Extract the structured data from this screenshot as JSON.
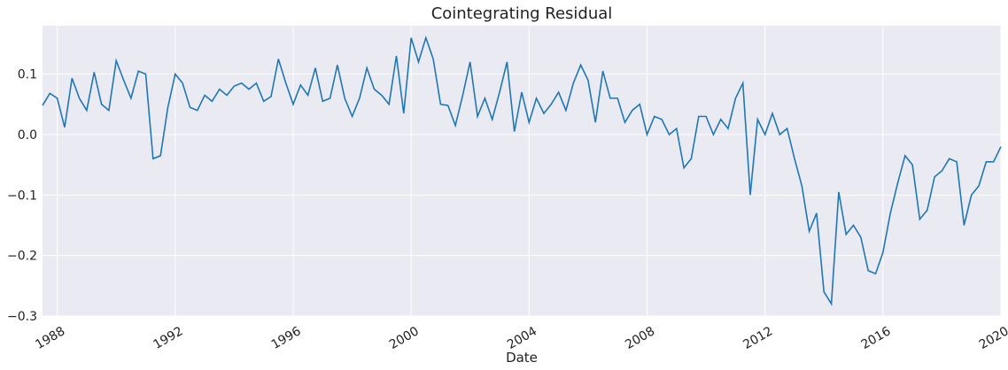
{
  "chart_data": {
    "type": "line",
    "title": "Cointegrating Residual",
    "xlabel": "Date",
    "ylabel": "",
    "xlim": [
      "1987-07",
      "2020-01"
    ],
    "ylim": [
      -0.3,
      0.18
    ],
    "grid": true,
    "y_ticks": [
      -0.3,
      -0.2,
      -0.1,
      0.0,
      0.1
    ],
    "y_tick_labels": [
      "−0.3",
      "−0.2",
      "−0.1",
      "0.0",
      "0.1"
    ],
    "x_ticks": [
      "1988",
      "1992",
      "1996",
      "2000",
      "2004",
      "2008",
      "2012",
      "2016",
      "2020"
    ],
    "colors": {
      "line": "#1f77b4",
      "background": "#eaeaf2",
      "grid": "#ffffff"
    },
    "series": [
      {
        "x": [
          "1987-07",
          "1987-10",
          "1988-01",
          "1988-04",
          "1988-07",
          "1988-10",
          "1989-01",
          "1989-04",
          "1989-07",
          "1989-10",
          "1990-01",
          "1990-04",
          "1990-07",
          "1990-10",
          "1991-01",
          "1991-04",
          "1991-07",
          "1991-10",
          "1992-01",
          "1992-04",
          "1992-07",
          "1992-10",
          "1993-01",
          "1993-04",
          "1993-07",
          "1993-10",
          "1994-01",
          "1994-04",
          "1994-07",
          "1994-10",
          "1995-01",
          "1995-04",
          "1995-07",
          "1995-10",
          "1996-01",
          "1996-04",
          "1996-07",
          "1996-10",
          "1997-01",
          "1997-04",
          "1997-07",
          "1997-10",
          "1998-01",
          "1998-04",
          "1998-07",
          "1998-10",
          "1999-01",
          "1999-04",
          "1999-07",
          "1999-10",
          "2000-01",
          "2000-04",
          "2000-07",
          "2000-10",
          "2001-01",
          "2001-04",
          "2001-07",
          "2001-10",
          "2002-01",
          "2002-04",
          "2002-07",
          "2002-10",
          "2003-01",
          "2003-04",
          "2003-07",
          "2003-10",
          "2004-01",
          "2004-04",
          "2004-07",
          "2004-10",
          "2005-01",
          "2005-04",
          "2005-07",
          "2005-10",
          "2006-01",
          "2006-04",
          "2006-07",
          "2006-10",
          "2007-01",
          "2007-04",
          "2007-07",
          "2007-10",
          "2008-01",
          "2008-04",
          "2008-07",
          "2008-10",
          "2009-01",
          "2009-04",
          "2009-07",
          "2009-10",
          "2010-01",
          "2010-04",
          "2010-07",
          "2010-10",
          "2011-01",
          "2011-04",
          "2011-07",
          "2011-10",
          "2012-01",
          "2012-04",
          "2012-07",
          "2012-10",
          "2013-01",
          "2013-04",
          "2013-07",
          "2013-10",
          "2014-01",
          "2014-04",
          "2014-07",
          "2014-10",
          "2015-01",
          "2015-04",
          "2015-07",
          "2015-10",
          "2016-01",
          "2016-04",
          "2016-07",
          "2016-10",
          "2017-01",
          "2017-04",
          "2017-07",
          "2017-10",
          "2018-01",
          "2018-04",
          "2018-07",
          "2018-10",
          "2019-01",
          "2019-04",
          "2019-07",
          "2019-10",
          "2020-01"
        ],
        "values": [
          0.048,
          0.068,
          0.06,
          0.012,
          0.093,
          0.06,
          0.04,
          0.103,
          0.05,
          0.04,
          0.122,
          0.09,
          0.06,
          0.105,
          0.1,
          -0.04,
          -0.035,
          0.045,
          0.1,
          0.085,
          0.045,
          0.04,
          0.065,
          0.055,
          0.075,
          0.065,
          0.08,
          0.085,
          0.075,
          0.085,
          0.055,
          0.063,
          0.125,
          0.085,
          0.05,
          0.082,
          0.065,
          0.11,
          0.055,
          0.06,
          0.115,
          0.06,
          0.03,
          0.06,
          0.11,
          0.075,
          0.065,
          0.05,
          0.13,
          0.035,
          0.16,
          0.12,
          0.16,
          0.125,
          0.05,
          0.048,
          0.015,
          0.065,
          0.12,
          0.03,
          0.06,
          0.025,
          0.07,
          0.12,
          0.005,
          0.07,
          0.02,
          0.06,
          0.035,
          0.05,
          0.07,
          0.04,
          0.085,
          0.115,
          0.09,
          0.02,
          0.105,
          0.06,
          0.06,
          0.02,
          0.04,
          0.05,
          0.0,
          0.03,
          0.025,
          0.0,
          0.01,
          -0.055,
          -0.04,
          0.03,
          0.03,
          0.0,
          0.025,
          0.01,
          0.06,
          0.085,
          -0.1,
          0.025,
          0.0,
          0.035,
          0.0,
          0.01,
          -0.04,
          -0.085,
          -0.16,
          -0.13,
          -0.26,
          -0.28,
          -0.095,
          -0.165,
          -0.15,
          -0.17,
          -0.225,
          -0.23,
          -0.195,
          -0.13,
          -0.08,
          -0.035,
          -0.05,
          -0.14,
          -0.125,
          -0.07,
          -0.06,
          -0.04,
          -0.045,
          -0.15,
          -0.1,
          -0.085,
          -0.045,
          -0.045,
          -0.02
        ]
      }
    ]
  }
}
